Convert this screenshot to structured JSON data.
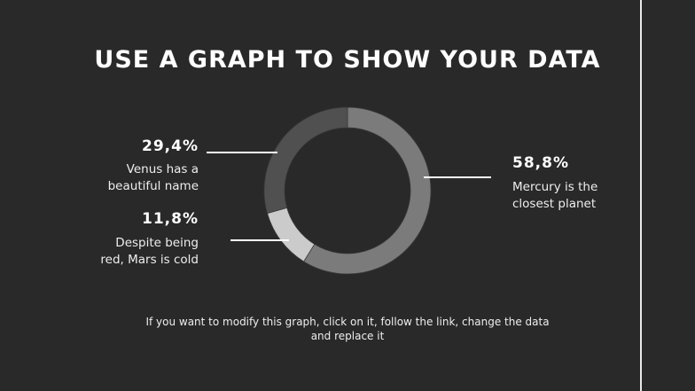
{
  "title": "USE A GRAPH TO SHOW YOUR DATA",
  "footer_line1": "If you want to modify this graph, click on it, follow the link, change the data",
  "footer_line2": "and replace it",
  "chart_data": {
    "type": "pie",
    "donut": true,
    "series": [
      {
        "name": "Mercury",
        "value": 58.8,
        "label": "58,8%",
        "description_1": "Mercury is the",
        "description_2": "closest planet",
        "color": "#7b7b7b"
      },
      {
        "name": "Mars",
        "value": 11.8,
        "label": "11,8%",
        "description_1": "Despite being",
        "description_2": "red, Mars is cold",
        "color": "#cbcbcb"
      },
      {
        "name": "Venus",
        "value": 29.4,
        "label": "29,4%",
        "description_1": "Venus has a",
        "description_2": "beautiful name",
        "color": "#505050"
      }
    ]
  },
  "colors": {
    "background": "#292929",
    "text": "#ffffff"
  }
}
